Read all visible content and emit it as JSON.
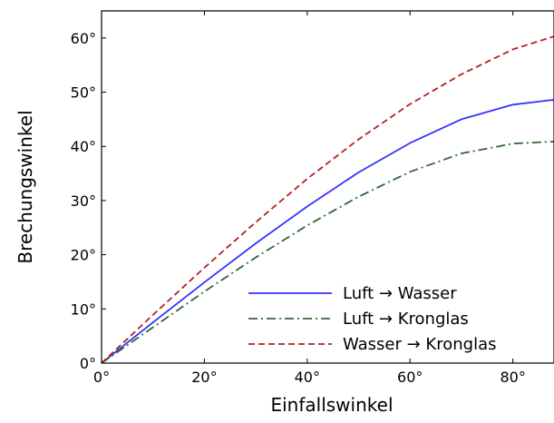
{
  "chart_data": {
    "type": "line",
    "title": "",
    "xlabel": "Einfallswinkel",
    "ylabel": "Brechungswinkel",
    "xlim": [
      0,
      88
    ],
    "ylim": [
      0,
      65
    ],
    "x_ticks": [
      0,
      20,
      40,
      60,
      80
    ],
    "y_ticks": [
      0,
      10,
      20,
      30,
      40,
      50,
      60
    ],
    "x_tick_labels": [
      "0°",
      "20°",
      "40°",
      "60°",
      "80°"
    ],
    "y_tick_labels": [
      "0°",
      "10°",
      "20°",
      "30°",
      "40°",
      "50°",
      "60°"
    ],
    "grid": false,
    "legend_position": "lower-right",
    "x": [
      0,
      10,
      20,
      30,
      40,
      50,
      60,
      70,
      80,
      88
    ],
    "series": [
      {
        "name": "Luft → Wasser",
        "color": "#3333ff",
        "style": "solid",
        "values": [
          0,
          7.5,
          14.9,
          22.1,
          28.9,
          35.2,
          40.6,
          45.0,
          47.7,
          48.6
        ]
      },
      {
        "name": "Luft → Kronglas",
        "color": "#336633",
        "style": "dashdot",
        "values": [
          0,
          6.6,
          13.2,
          19.5,
          25.4,
          30.7,
          35.3,
          38.7,
          40.5,
          40.9
        ]
      },
      {
        "name": "Wasser → Kronglas",
        "color": "#b22222",
        "style": "dashed",
        "values": [
          0,
          8.9,
          17.6,
          26.0,
          34.0,
          41.3,
          47.8,
          53.3,
          57.9,
          60.3
        ]
      }
    ]
  }
}
